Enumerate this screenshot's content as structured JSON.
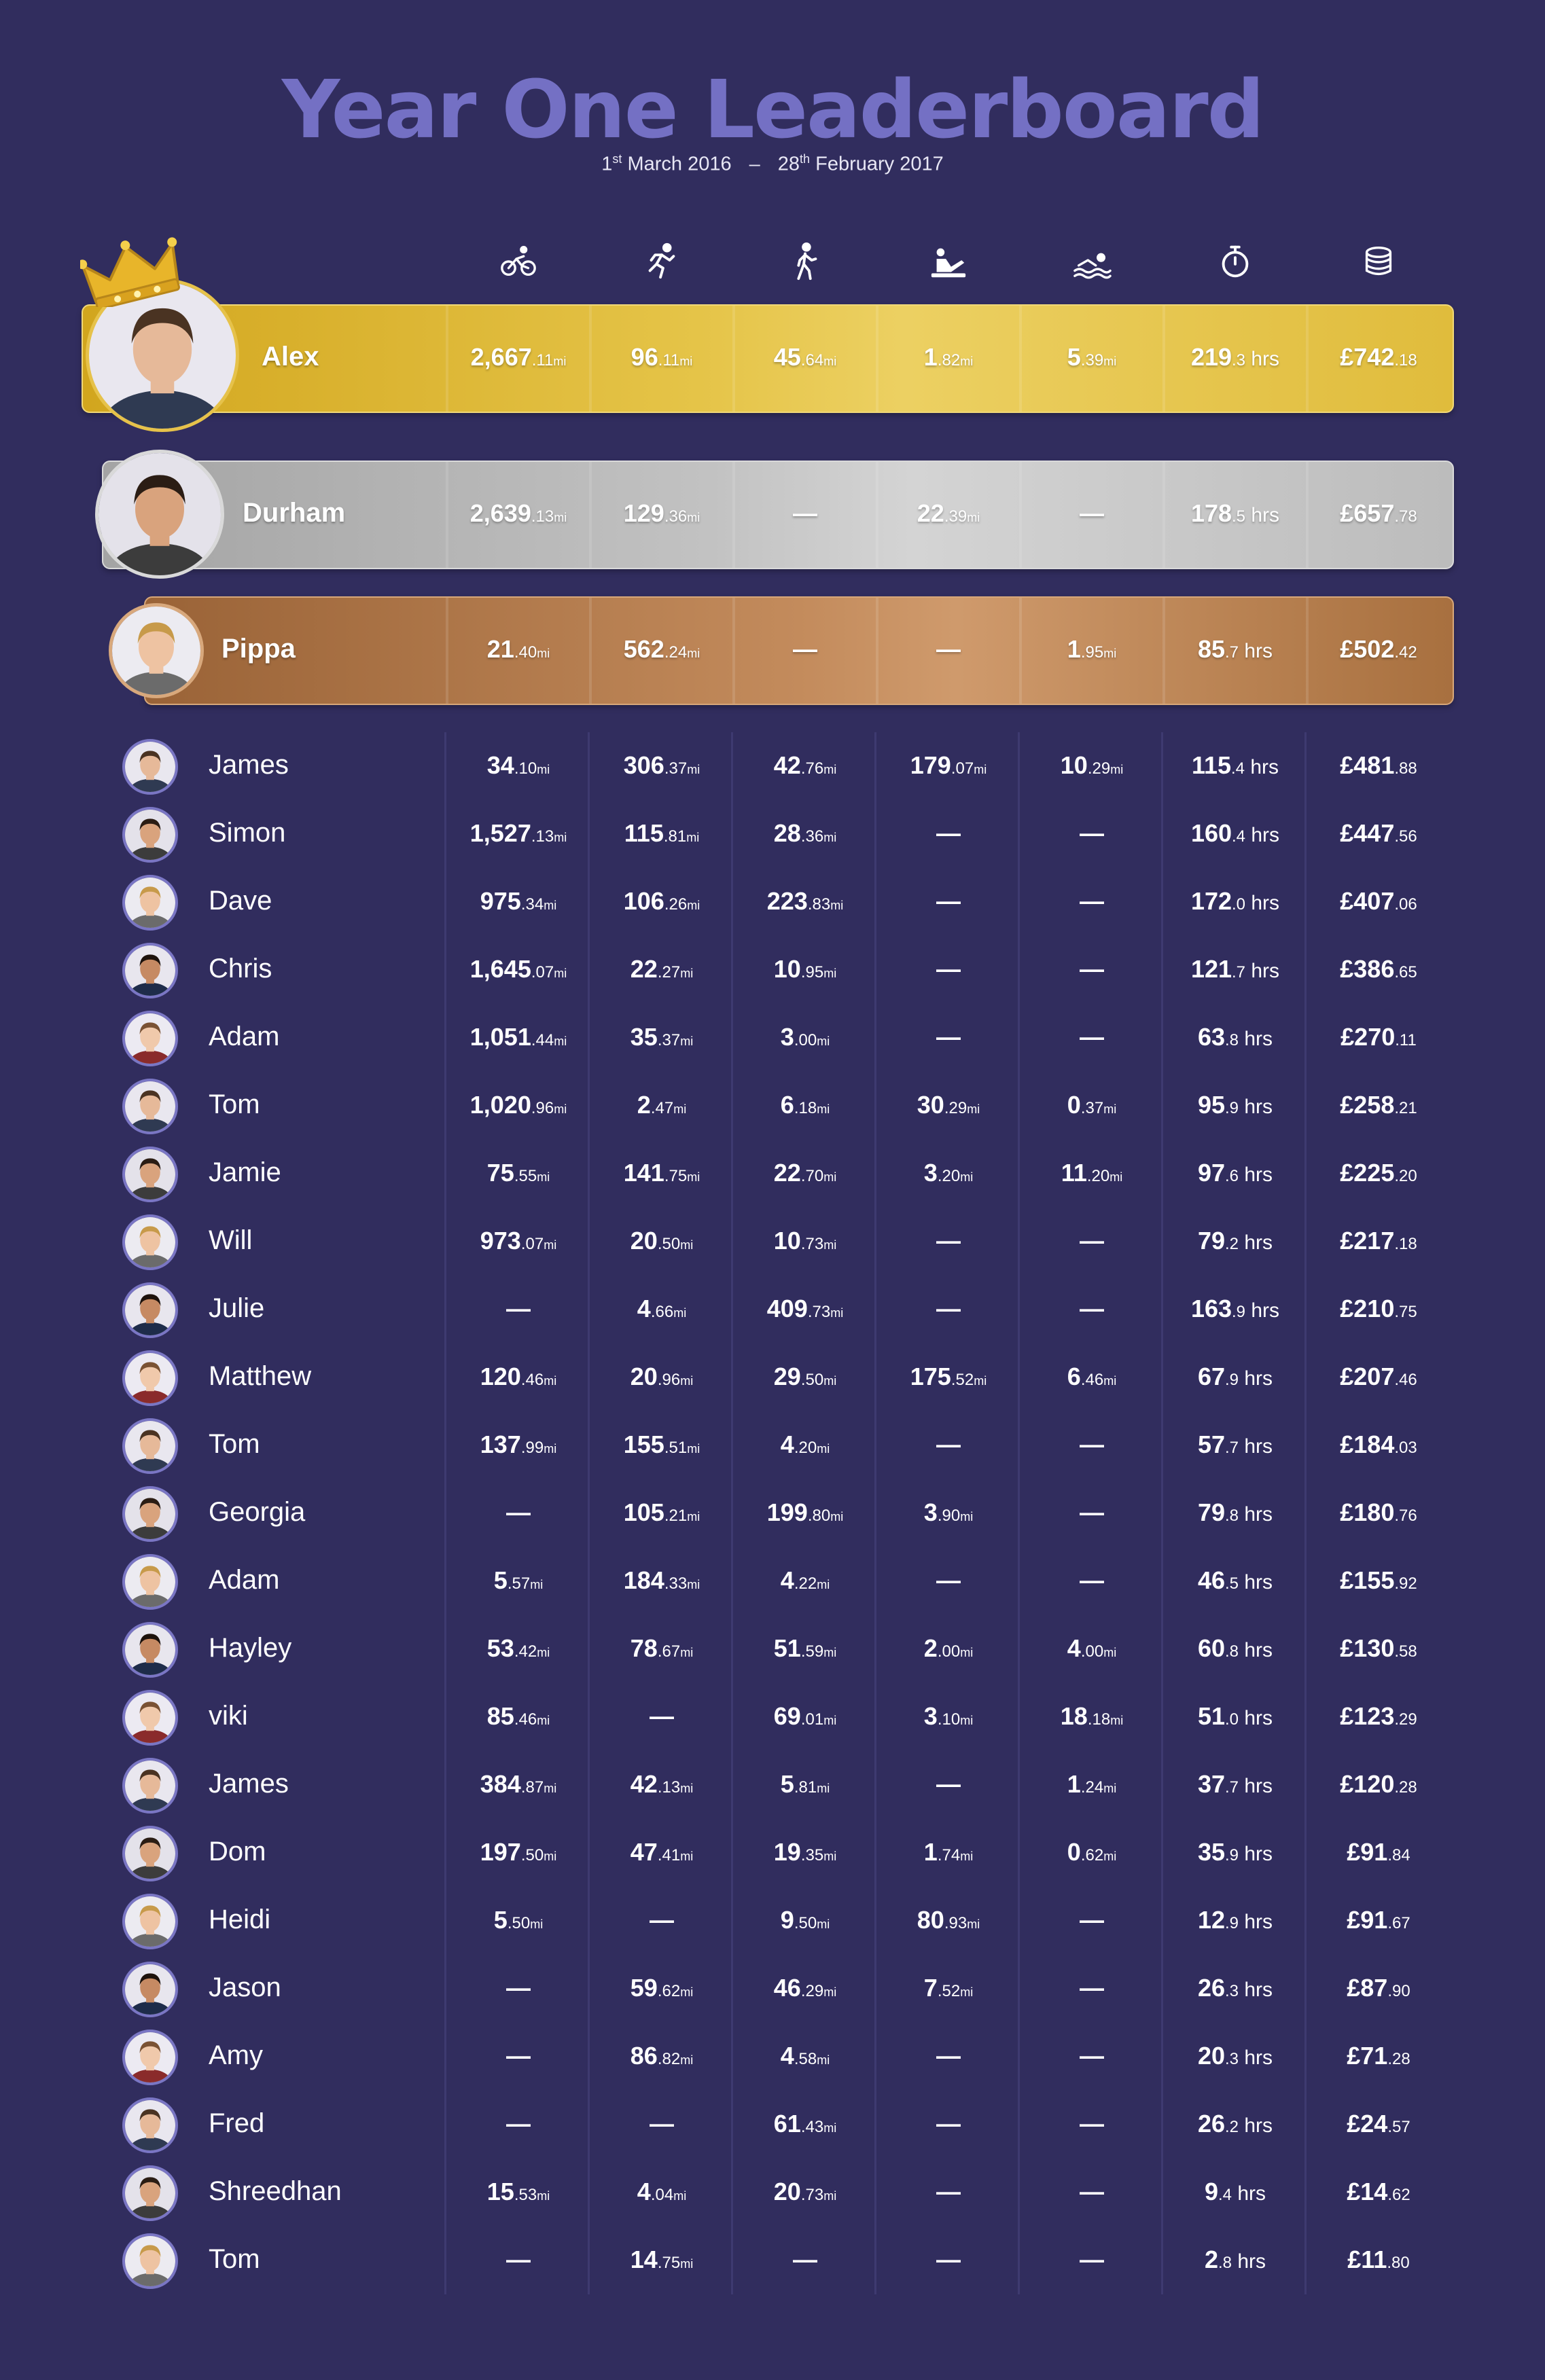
{
  "header": {
    "title": "Year One Leaderboard",
    "start_day": "1",
    "start_sup": "st",
    "start_rest": " March 2016",
    "dash": "–",
    "end_day": "28",
    "end_sup": "th",
    "end_rest": " February 2017"
  },
  "columns": [
    "cycle-icon",
    "run-icon",
    "walk-icon",
    "row-icon",
    "swim-icon",
    "stopwatch-icon",
    "coins-icon"
  ],
  "colors": {
    "background": "#312d5e",
    "title": "#7470c4",
    "gold": "#e5c448",
    "silver": "#c2c2c2",
    "bronze": "#c38b5c",
    "avatar_ring": "#7a76c4"
  },
  "podium": [
    {
      "name": "Alex",
      "tier": "gold",
      "values": [
        {
          "main": "2,667",
          "dec": ".11",
          "unit": "mi"
        },
        {
          "main": "96",
          "dec": ".11",
          "unit": "mi"
        },
        {
          "main": "45",
          "dec": ".64",
          "unit": "mi"
        },
        {
          "main": "1",
          "dec": ".82",
          "unit": "mi"
        },
        {
          "main": "5",
          "dec": ".39",
          "unit": "mi"
        },
        {
          "main": "219",
          "dec": ".3 hrs",
          "unit": ""
        },
        {
          "main": "£742",
          "dec": ".18",
          "unit": ""
        }
      ]
    },
    {
      "name": "Durham",
      "tier": "silver",
      "values": [
        {
          "main": "2,639",
          "dec": ".13",
          "unit": "mi"
        },
        {
          "main": "129",
          "dec": ".36",
          "unit": "mi"
        },
        {
          "main": "—",
          "dec": "",
          "unit": ""
        },
        {
          "main": "22",
          "dec": ".39",
          "unit": "mi"
        },
        {
          "main": "—",
          "dec": "",
          "unit": ""
        },
        {
          "main": "178",
          "dec": ".5 hrs",
          "unit": ""
        },
        {
          "main": "£657",
          "dec": ".78",
          "unit": ""
        }
      ]
    },
    {
      "name": "Pippa",
      "tier": "bronze",
      "values": [
        {
          "main": "21",
          "dec": ".40",
          "unit": "mi"
        },
        {
          "main": "562",
          "dec": ".24",
          "unit": "mi"
        },
        {
          "main": "—",
          "dec": "",
          "unit": ""
        },
        {
          "main": "—",
          "dec": "",
          "unit": ""
        },
        {
          "main": "1",
          "dec": ".95",
          "unit": "mi"
        },
        {
          "main": "85",
          "dec": ".7 hrs",
          "unit": ""
        },
        {
          "main": "£502",
          "dec": ".42",
          "unit": ""
        }
      ]
    }
  ],
  "rows": [
    {
      "name": "James",
      "values": [
        "34|.10|mi",
        "306|.37|mi",
        "42|.76|mi",
        "179|.07|mi",
        "10|.29|mi",
        "115|.4 hrs|",
        "£481|.88|"
      ]
    },
    {
      "name": "Simon",
      "values": [
        "1,527|.13|mi",
        "115|.81|mi",
        "28|.36|mi",
        "—||",
        "—||",
        "160|.4 hrs|",
        "£447|.56|"
      ]
    },
    {
      "name": "Dave",
      "values": [
        "975|.34|mi",
        "106|.26|mi",
        "223|.83|mi",
        "—||",
        "—||",
        "172|.0 hrs|",
        "£407|.06|"
      ]
    },
    {
      "name": "Chris",
      "values": [
        "1,645|.07|mi",
        "22|.27|mi",
        "10|.95|mi",
        "—||",
        "—||",
        "121|.7 hrs|",
        "£386|.65|"
      ]
    },
    {
      "name": "Adam",
      "values": [
        "1,051|.44|mi",
        "35|.37|mi",
        "3|.00|mi",
        "—||",
        "—||",
        "63|.8 hrs|",
        "£270|.11|"
      ]
    },
    {
      "name": "Tom",
      "values": [
        "1,020|.96|mi",
        "2|.47|mi",
        "6|.18|mi",
        "30|.29|mi",
        "0|.37|mi",
        "95|.9 hrs|",
        "£258|.21|"
      ]
    },
    {
      "name": "Jamie",
      "values": [
        "75|.55|mi",
        "141|.75|mi",
        "22|.70|mi",
        "3|.20|mi",
        "11|.20|mi",
        "97|.6 hrs|",
        "£225|.20|"
      ]
    },
    {
      "name": "Will",
      "values": [
        "973|.07|mi",
        "20|.50|mi",
        "10|.73|mi",
        "—||",
        "—||",
        "79|.2 hrs|",
        "£217|.18|"
      ]
    },
    {
      "name": "Julie",
      "values": [
        "—||",
        "4|.66|mi",
        "409|.73|mi",
        "—||",
        "—||",
        "163|.9 hrs|",
        "£210|.75|"
      ]
    },
    {
      "name": "Matthew",
      "values": [
        "120|.46|mi",
        "20|.96|mi",
        "29|.50|mi",
        "175|.52|mi",
        "6|.46|mi",
        "67|.9 hrs|",
        "£207|.46|"
      ]
    },
    {
      "name": "Tom",
      "values": [
        "137|.99|mi",
        "155|.51|mi",
        "4|.20|mi",
        "—||",
        "—||",
        "57|.7 hrs|",
        "£184|.03|"
      ]
    },
    {
      "name": "Georgia",
      "values": [
        "—||",
        "105|.21|mi",
        "199|.80|mi",
        "3|.90|mi",
        "—||",
        "79|.8 hrs|",
        "£180|.76|"
      ]
    },
    {
      "name": "Adam",
      "values": [
        "5|.57|mi",
        "184|.33|mi",
        "4|.22|mi",
        "—||",
        "—||",
        "46|.5 hrs|",
        "£155|.92|"
      ]
    },
    {
      "name": "Hayley",
      "values": [
        "53|.42|mi",
        "78|.67|mi",
        "51|.59|mi",
        "2|.00|mi",
        "4|.00|mi",
        "60|.8 hrs|",
        "£130|.58|"
      ]
    },
    {
      "name": "viki",
      "values": [
        "85|.46|mi",
        "—||",
        "69|.01|mi",
        "3|.10|mi",
        "18|.18|mi",
        "51|.0 hrs|",
        "£123|.29|"
      ]
    },
    {
      "name": "James",
      "values": [
        "384|.87|mi",
        "42|.13|mi",
        "5|.81|mi",
        "—||",
        "1|.24|mi",
        "37|.7 hrs|",
        "£120|.28|"
      ]
    },
    {
      "name": "Dom",
      "values": [
        "197|.50|mi",
        "47|.41|mi",
        "19|.35|mi",
        "1|.74|mi",
        "0|.62|mi",
        "35|.9 hrs|",
        "£91|.84|"
      ]
    },
    {
      "name": "Heidi",
      "values": [
        "5|.50|mi",
        "—||",
        "9|.50|mi",
        "80|.93|mi",
        "—||",
        "12|.9 hrs|",
        "£91|.67|"
      ]
    },
    {
      "name": "Jason",
      "values": [
        "—||",
        "59|.62|mi",
        "46|.29|mi",
        "7|.52|mi",
        "—||",
        "26|.3 hrs|",
        "£87|.90|"
      ]
    },
    {
      "name": "Amy",
      "values": [
        "—||",
        "86|.82|mi",
        "4|.58|mi",
        "—||",
        "—||",
        "20|.3 hrs|",
        "£71|.28|"
      ]
    },
    {
      "name": "Fred",
      "values": [
        "—||",
        "—||",
        "61|.43|mi",
        "—||",
        "—||",
        "26|.2 hrs|",
        "£24|.57|"
      ]
    },
    {
      "name": "Shreedhan",
      "values": [
        "15|.53|mi",
        "4|.04|mi",
        "20|.73|mi",
        "—||",
        "—||",
        "9|.4 hrs|",
        "£14|.62|"
      ]
    },
    {
      "name": "Tom",
      "values": [
        "—||",
        "14|.75|mi",
        "—||",
        "—||",
        "—||",
        "2|.8 hrs|",
        "£11|.80|"
      ]
    }
  ]
}
